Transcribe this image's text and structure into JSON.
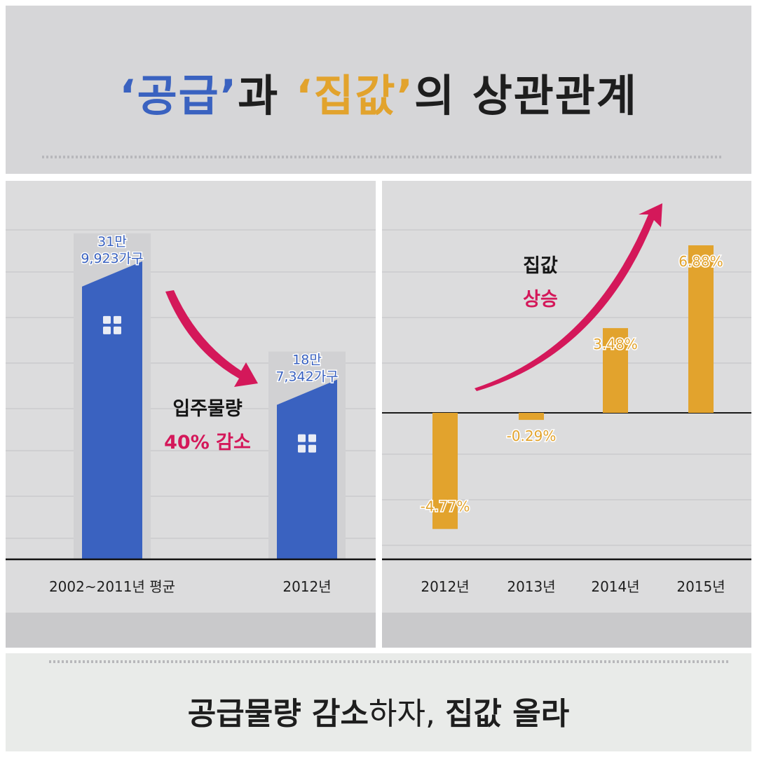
{
  "title": {
    "quote_open_1": "‘",
    "part1": "공급",
    "quote_close_1": "’",
    "part2": "과 ",
    "quote_open_2": "‘",
    "part3": "집값",
    "quote_close_2": "’",
    "part4": "의 상관관계"
  },
  "caption": {
    "part1": "공급물량 감소",
    "part2": "하자, ",
    "part3": "집값 올라"
  },
  "colors": {
    "blue": "#3a62c0",
    "orange": "#e2a32d",
    "magenta": "#d4185a",
    "panel_bg": "#dcdcdd"
  },
  "chart_data": [
    {
      "type": "bar",
      "categories": [
        "2002~2011년 평균",
        "2012년"
      ],
      "values": [
        319923,
        187342
      ],
      "data_labels": [
        [
          "31만",
          "9,923가구"
        ],
        [
          "18만",
          "7,342가구"
        ]
      ],
      "annotation": {
        "line1": "입주물량",
        "line2": "40% 감소"
      },
      "ylim": [
        0,
        330000
      ],
      "grid": true
    },
    {
      "type": "bar",
      "categories": [
        "2012년",
        "2013년",
        "2014년",
        "2015년"
      ],
      "values": [
        -4.77,
        -0.29,
        3.48,
        6.88
      ],
      "data_labels": [
        "-4.77%",
        "-0.29%",
        "3.48%",
        "6.88%"
      ],
      "annotation": {
        "line1": "집값",
        "line2": "상승"
      },
      "ylim": [
        -6.0,
        6.88
      ],
      "grid": true
    }
  ]
}
